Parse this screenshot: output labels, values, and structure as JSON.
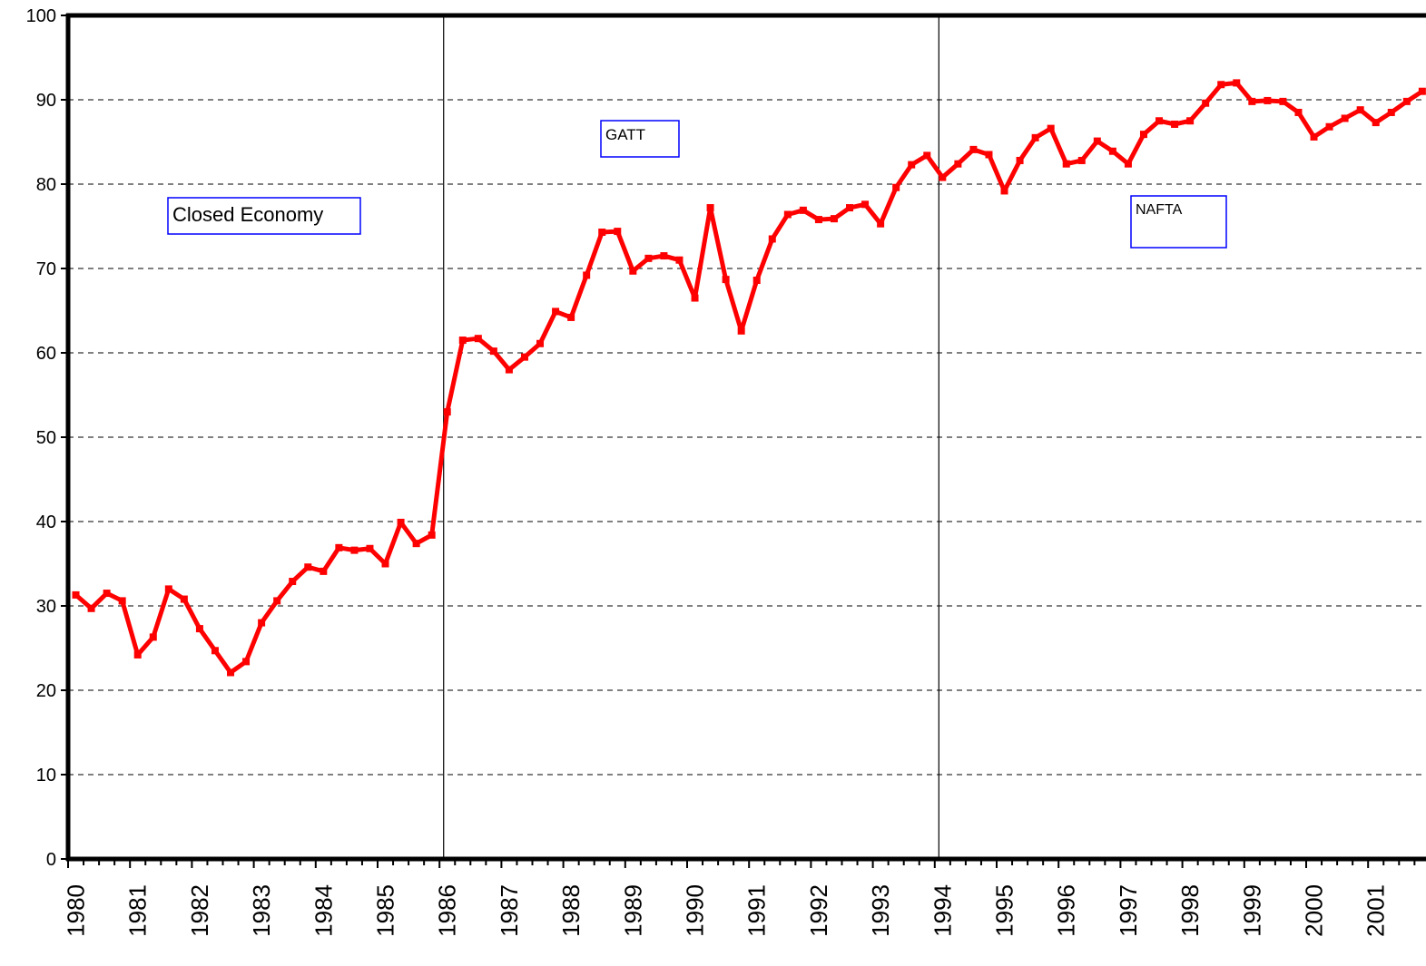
{
  "chart_data": {
    "type": "line",
    "categories": [
      "1980",
      null,
      null,
      null,
      "1981",
      null,
      null,
      null,
      "1982",
      null,
      null,
      null,
      "1983",
      null,
      null,
      null,
      "1984",
      null,
      null,
      null,
      "1985",
      null,
      null,
      null,
      "1986",
      null,
      null,
      null,
      "1987",
      null,
      null,
      null,
      "1988",
      null,
      null,
      null,
      "1989",
      null,
      null,
      null,
      "1990",
      null,
      null,
      null,
      "1991",
      null,
      null,
      null,
      "1992",
      null,
      null,
      null,
      "1993",
      null,
      null,
      null,
      "1994",
      null,
      null,
      null,
      "1995",
      null,
      null,
      null,
      "1996",
      null,
      null,
      null,
      "1997",
      null,
      null,
      null,
      "1998",
      null,
      null,
      null,
      "1999",
      null,
      null,
      null,
      "2000",
      null,
      null,
      null,
      "2001",
      null,
      null,
      null
    ],
    "series": [
      {
        "color": "#ff0000",
        "values": [
          31.3,
          29.7,
          31.5,
          30.6,
          24.2,
          26.3,
          32.0,
          30.8,
          27.3,
          24.7,
          22.1,
          23.4,
          28.0,
          30.6,
          32.9,
          34.6,
          34.1,
          36.9,
          36.6,
          36.8,
          35.0,
          39.9,
          37.4,
          38.4,
          53.0,
          61.5,
          61.7,
          60.2,
          58.0,
          59.5,
          61.1,
          64.9,
          64.2,
          69.2,
          74.3,
          74.4,
          69.7,
          71.2,
          71.5,
          71.0,
          66.5,
          77.2,
          68.7,
          62.6,
          68.6,
          73.5,
          76.4,
          76.9,
          75.8,
          75.9,
          77.2,
          77.6,
          75.3,
          79.6,
          82.3,
          83.4,
          80.8,
          82.4,
          84.1,
          83.5,
          79.2,
          82.8,
          85.5,
          86.6,
          82.4,
          82.8,
          85.1,
          83.9,
          82.4,
          85.9,
          87.5,
          87.1,
          87.5,
          89.6,
          91.8,
          92.0,
          89.8,
          89.9,
          89.8,
          88.5,
          85.6,
          86.8,
          87.8,
          88.8,
          87.3,
          88.5,
          89.8,
          91.0
        ]
      }
    ],
    "ylim": [
      0,
      100
    ],
    "yticks": [
      0,
      10,
      20,
      30,
      40,
      50,
      60,
      70,
      80,
      90,
      100
    ],
    "grid": true,
    "event_lines_at": [
      24,
      56
    ],
    "annotations": [
      "Closed Economy",
      "GATT",
      "NAFTA"
    ]
  }
}
